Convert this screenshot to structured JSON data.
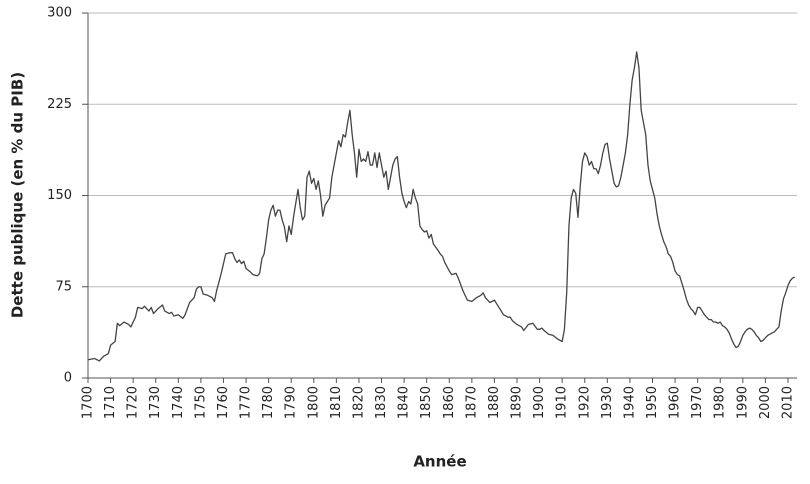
{
  "chart_data": {
    "type": "line",
    "ylabel": "Dette publique (en % du PIB)",
    "xlabel": "Année",
    "color": "#444444",
    "xlim": [
      1700,
      2014
    ],
    "ylim": [
      0,
      300
    ],
    "yticks": [
      0,
      75,
      150,
      225,
      300
    ],
    "xticks": [
      1700,
      1710,
      1720,
      1730,
      1740,
      1750,
      1760,
      1770,
      1780,
      1790,
      1800,
      1810,
      1820,
      1830,
      1840,
      1850,
      1860,
      1870,
      1880,
      1890,
      1900,
      1910,
      1920,
      1930,
      1940,
      1950,
      1960,
      1970,
      1980,
      1990,
      2000,
      2010
    ],
    "grid": true,
    "x": [
      1700,
      1703,
      1705,
      1707,
      1709,
      1710,
      1712,
      1713,
      1714,
      1716,
      1718,
      1719,
      1721,
      1722,
      1724,
      1725,
      1727,
      1728,
      1729,
      1731,
      1733,
      1734,
      1736,
      1737,
      1738,
      1740,
      1742,
      1743,
      1745,
      1747,
      1748,
      1749,
      1750,
      1751,
      1753,
      1755,
      1756,
      1757,
      1759,
      1761,
      1763,
      1764,
      1765,
      1766,
      1767,
      1768,
      1769,
      1770,
      1772,
      1773,
      1775,
      1776,
      1777,
      1778,
      1779,
      1780,
      1781,
      1782,
      1783,
      1784,
      1785,
      1786,
      1787,
      1788,
      1789,
      1790,
      1791,
      1793,
      1794,
      1795,
      1796,
      1797,
      1798,
      1799,
      1800,
      1801,
      1802,
      1803,
      1804,
      1805,
      1807,
      1808,
      1810,
      1811,
      1812,
      1813,
      1814,
      1815,
      1816,
      1817,
      1818,
      1819,
      1820,
      1821,
      1822,
      1823,
      1824,
      1825,
      1826,
      1827,
      1828,
      1829,
      1830,
      1831,
      1832,
      1833,
      1834,
      1835,
      1836,
      1837,
      1838,
      1839,
      1840,
      1841,
      1842,
      1843,
      1844,
      1845,
      1846,
      1847,
      1848,
      1849,
      1850,
      1851,
      1852,
      1853,
      1855,
      1856,
      1857,
      1858,
      1860,
      1861,
      1863,
      1864,
      1866,
      1867,
      1868,
      1870,
      1872,
      1874,
      1875,
      1876,
      1878,
      1880,
      1881,
      1883,
      1884,
      1886,
      1887,
      1888,
      1890,
      1892,
      1893,
      1895,
      1897,
      1899,
      1900,
      1901,
      1902,
      1904,
      1906,
      1908,
      1910,
      1911,
      1912,
      1913,
      1914,
      1915,
      1916,
      1917,
      1918,
      1919,
      1920,
      1921,
      1922,
      1923,
      1924,
      1925,
      1926,
      1927,
      1928,
      1929,
      1930,
      1931,
      1932,
      1933,
      1934,
      1935,
      1936,
      1937,
      1938,
      1939,
      1940,
      1941,
      1942,
      1943,
      1944,
      1945,
      1946,
      1947,
      1948,
      1949,
      1950,
      1951,
      1952,
      1953,
      1954,
      1955,
      1956,
      1957,
      1958,
      1959,
      1960,
      1961,
      1962,
      1963,
      1964,
      1965,
      1966,
      1967,
      1968,
      1969,
      1970,
      1971,
      1972,
      1973,
      1974,
      1975,
      1976,
      1977,
      1978,
      1979,
      1980,
      1981,
      1982,
      1983,
      1984,
      1985,
      1986,
      1987,
      1988,
      1989,
      1990,
      1991,
      1992,
      1993,
      1994,
      1995,
      1996,
      1997,
      1998,
      1999,
      2000,
      2001,
      2002,
      2003,
      2004,
      2005,
      2006,
      2007,
      2008,
      2009,
      2010,
      2011,
      2012,
      2013
    ],
    "values": [
      15,
      16,
      14,
      18,
      20,
      27,
      30,
      45,
      43,
      46,
      44,
      42,
      50,
      58,
      57,
      59,
      55,
      58,
      53,
      57,
      60,
      55,
      53,
      54,
      51,
      52,
      49,
      52,
      62,
      66,
      73,
      75,
      75,
      69,
      68,
      66,
      63,
      72,
      86,
      102,
      103,
      103,
      98,
      95,
      97,
      94,
      96,
      90,
      87,
      85,
      84,
      86,
      98,
      102,
      115,
      130,
      138,
      142,
      133,
      138,
      138,
      130,
      124,
      112,
      125,
      118,
      132,
      155,
      140,
      130,
      133,
      165,
      170,
      160,
      164,
      155,
      162,
      150,
      133,
      142,
      148,
      165,
      185,
      195,
      190,
      200,
      198,
      210,
      220,
      200,
      185,
      165,
      188,
      178,
      180,
      178,
      186,
      175,
      175,
      185,
      173,
      185,
      175,
      165,
      170,
      155,
      165,
      175,
      180,
      182,
      165,
      152,
      145,
      140,
      145,
      143,
      155,
      148,
      143,
      125,
      122,
      120,
      121,
      115,
      118,
      110,
      105,
      102,
      100,
      95,
      88,
      85,
      86,
      82,
      72,
      68,
      64,
      63,
      66,
      68,
      70,
      66,
      62,
      64,
      61,
      55,
      52,
      50,
      50,
      47,
      44,
      42,
      39,
      44,
      45,
      40,
      40,
      41,
      39,
      36,
      35,
      32,
      30,
      40,
      70,
      125,
      148,
      155,
      152,
      132,
      158,
      178,
      185,
      182,
      175,
      178,
      172,
      172,
      168,
      175,
      185,
      192,
      193,
      180,
      170,
      160,
      157,
      158,
      165,
      175,
      185,
      200,
      225,
      245,
      255,
      268,
      255,
      220,
      210,
      200,
      175,
      162,
      155,
      148,
      135,
      125,
      118,
      112,
      108,
      102,
      100,
      95,
      88,
      85,
      84,
      78,
      72,
      65,
      60,
      57,
      55,
      52,
      58,
      58,
      55,
      52,
      50,
      48,
      48,
      46,
      46,
      45,
      46,
      43,
      42,
      40,
      37,
      32,
      28,
      25,
      26,
      30,
      35,
      38,
      40,
      41,
      40,
      38,
      35,
      33,
      30,
      31,
      33,
      35,
      36,
      37,
      38,
      40,
      42,
      55,
      65,
      70,
      76,
      80,
      82,
      83
    ]
  }
}
